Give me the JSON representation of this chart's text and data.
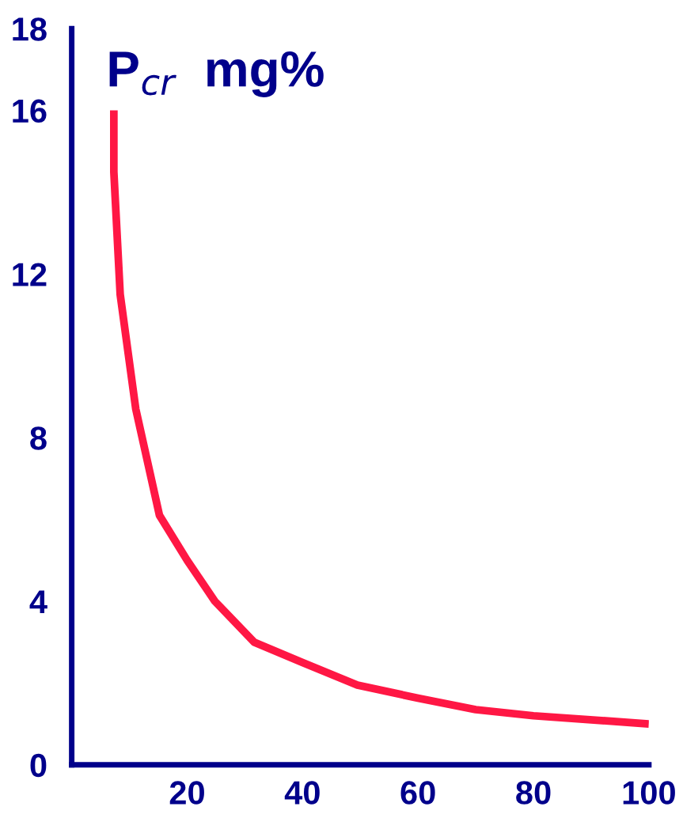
{
  "chart_data": {
    "type": "line",
    "ylabel": "P$_{cr}$  mg%",
    "x": [
      7.3,
      7.3,
      8.4,
      11.1,
      15.2,
      20,
      24.8,
      31.6,
      40,
      49.5,
      60,
      70,
      80,
      100
    ],
    "series": [
      {
        "color": "#ff1744",
        "values": [
          16,
          14.5,
          11.5,
          8.7,
          6.1,
          5.0,
          4.0,
          3.0,
          2.5,
          1.95,
          1.63,
          1.35,
          1.2,
          1.0
        ]
      }
    ],
    "xlim": [
      0,
      100
    ],
    "xticks": [
      20,
      40,
      60,
      80,
      100
    ],
    "ylim": [
      0,
      18
    ],
    "yticks": [
      0,
      4,
      8,
      12,
      16,
      18
    ],
    "grid": false,
    "legend": false,
    "marker": "none",
    "line_style": "solid"
  }
}
